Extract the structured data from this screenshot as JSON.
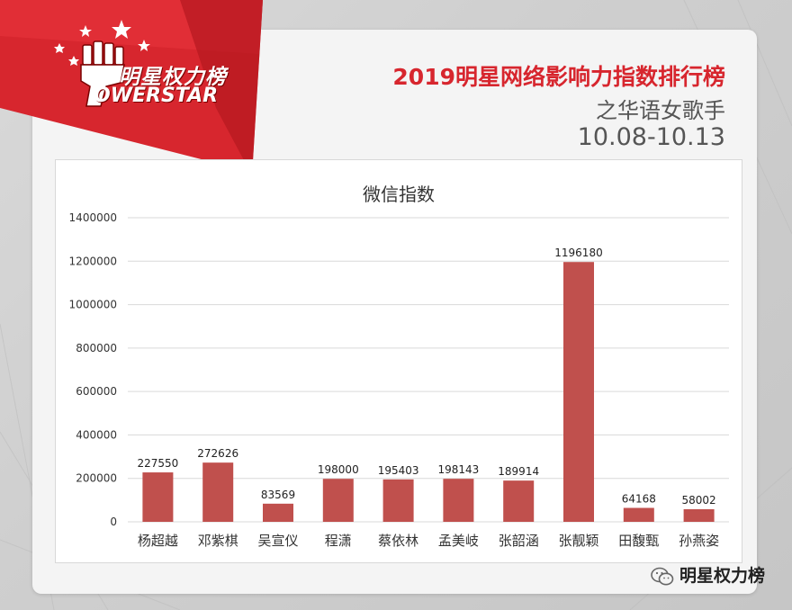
{
  "logo": {
    "cn": "明星权力榜",
    "en": "OWERSTAR",
    "icon": "powerstar-fist-logo"
  },
  "header": {
    "title": "2019明星网络影响力指数排行榜",
    "subtitle": "之华语女歌手",
    "date_range": "10.08-10.13"
  },
  "watermark": {
    "text": "明星权力榜",
    "icon": "wechat-icon"
  },
  "colors": {
    "bar": "#c0504d",
    "accent": "#d7262e"
  },
  "chart_data": {
    "type": "bar",
    "title": "微信指数",
    "categories": [
      "杨超越",
      "邓紫棋",
      "吴宣仪",
      "程潇",
      "蔡依林",
      "孟美岐",
      "张韶涵",
      "张靓颖",
      "田馥甄",
      "孙燕姿"
    ],
    "values": [
      227550,
      272626,
      83569,
      198000,
      195403,
      198143,
      189914,
      1196180,
      64168,
      58002
    ],
    "ylim": [
      0,
      1400000
    ],
    "yticks": [
      0,
      200000,
      400000,
      600000,
      800000,
      1000000,
      1200000,
      1400000
    ],
    "ytick_labels": [
      "0",
      "200000",
      "400000",
      "600000",
      "800000",
      "1000000",
      "1200000",
      "1400000"
    ],
    "data_labels": [
      "227550",
      "272626",
      "83569",
      "198000",
      "195403",
      "198143",
      "189914",
      "1196180",
      "64168",
      "58002"
    ],
    "grid": true,
    "legend": "none"
  }
}
